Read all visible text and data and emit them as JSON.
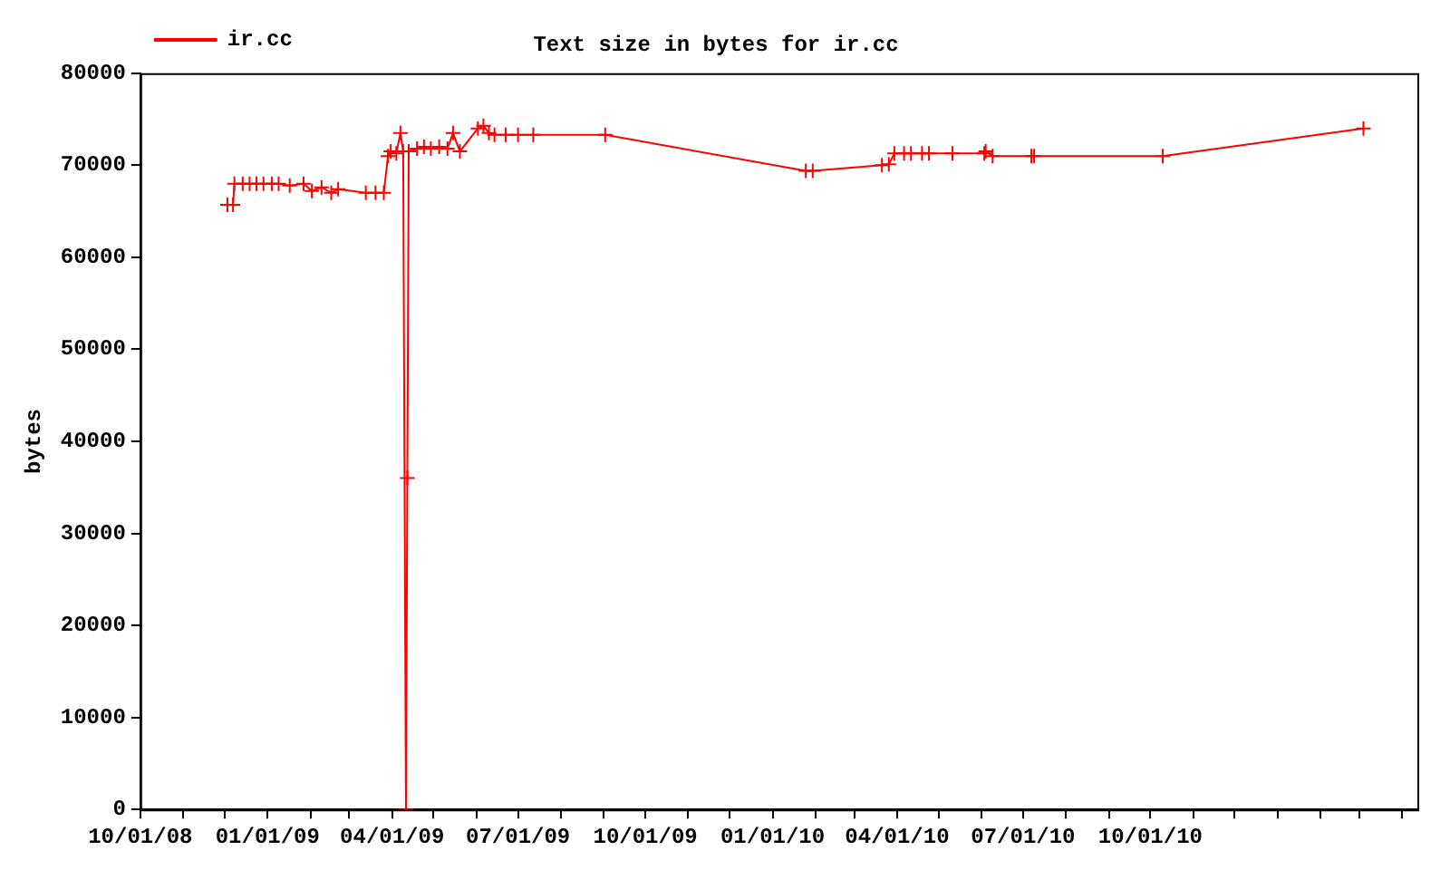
{
  "chart_data": {
    "type": "line",
    "title": "Text size in bytes for ir.cc",
    "ylabel": "bytes",
    "x": [
      "2008-12-03",
      "2008-12-07",
      "2008-12-08",
      "2008-12-14",
      "2008-12-19",
      "2008-12-24",
      "2008-12-29",
      "2009-01-04",
      "2009-01-09",
      "2009-01-17",
      "2009-01-27",
      "2009-02-02",
      "2009-02-09",
      "2009-02-16",
      "2009-02-21",
      "2009-03-13",
      "2009-03-20",
      "2009-03-26",
      "2009-03-29",
      "2009-03-31",
      "2009-04-04",
      "2009-04-07",
      "2009-04-09",
      "2009-04-11",
      "2009-04-12",
      "2009-04-13",
      "2009-04-19",
      "2009-04-24",
      "2009-04-29",
      "2009-05-05",
      "2009-05-11",
      "2009-05-15",
      "2009-05-20",
      "2009-06-02",
      "2009-06-06",
      "2009-06-10",
      "2009-06-14",
      "2009-06-22",
      "2009-07-01",
      "2009-07-12",
      "2009-09-02",
      "2010-01-25",
      "2010-01-30",
      "2010-03-21",
      "2010-03-26",
      "2010-03-30",
      "2010-04-06",
      "2010-04-11",
      "2010-04-19",
      "2010-04-24",
      "2010-05-11",
      "2010-06-03",
      "2010-06-04",
      "2010-06-09",
      "2010-07-07",
      "2010-07-09",
      "2010-10-10",
      "2011-03-04"
    ],
    "series": [
      {
        "name": "ir.cc",
        "color": "#ff0000",
        "values": [
          65700,
          65700,
          68000,
          68000,
          68000,
          68000,
          68000,
          68000,
          68000,
          67800,
          68000,
          67200,
          67600,
          67000,
          67400,
          67000,
          67000,
          67000,
          71000,
          71500,
          71300,
          73500,
          71500,
          0,
          36000,
          71500,
          71800,
          72000,
          71800,
          72000,
          71800,
          73500,
          71500,
          74000,
          74300,
          73500,
          73300,
          73300,
          73300,
          73300,
          73300,
          69400,
          69400,
          70000,
          70100,
          71300,
          71300,
          71300,
          71300,
          71300,
          71300,
          71300,
          71500,
          71000,
          71000,
          71000,
          71000,
          74000
        ]
      }
    ],
    "xlim": [
      "2008-10-01",
      "2011-04-12"
    ],
    "xticks": [
      {
        "value": "2008-10-01",
        "label": "10/01/08"
      },
      {
        "value": "2008-11-01",
        "label": null
      },
      {
        "value": "2008-12-01",
        "label": null
      },
      {
        "value": "2009-01-01",
        "label": "01/01/09"
      },
      {
        "value": "2009-02-01",
        "label": null
      },
      {
        "value": "2009-03-01",
        "label": null
      },
      {
        "value": "2009-04-01",
        "label": "04/01/09"
      },
      {
        "value": "2009-05-01",
        "label": null
      },
      {
        "value": "2009-06-01",
        "label": null
      },
      {
        "value": "2009-07-01",
        "label": "07/01/09"
      },
      {
        "value": "2009-08-01",
        "label": null
      },
      {
        "value": "2009-09-01",
        "label": null
      },
      {
        "value": "2009-10-01",
        "label": "10/01/09"
      },
      {
        "value": "2009-11-01",
        "label": null
      },
      {
        "value": "2009-12-01",
        "label": null
      },
      {
        "value": "2010-01-01",
        "label": "01/01/10"
      },
      {
        "value": "2010-02-01",
        "label": null
      },
      {
        "value": "2010-03-01",
        "label": null
      },
      {
        "value": "2010-04-01",
        "label": "04/01/10"
      },
      {
        "value": "2010-05-01",
        "label": null
      },
      {
        "value": "2010-06-01",
        "label": null
      },
      {
        "value": "2010-07-01",
        "label": "07/01/10"
      },
      {
        "value": "2010-08-01",
        "label": null
      },
      {
        "value": "2010-09-01",
        "label": null
      },
      {
        "value": "2010-10-01",
        "label": "10/01/10"
      },
      {
        "value": "2010-11-01",
        "label": null
      },
      {
        "value": "2010-12-01",
        "label": null
      },
      {
        "value": "2011-01-01",
        "label": null
      },
      {
        "value": "2011-02-01",
        "label": null
      },
      {
        "value": "2011-03-01",
        "label": null
      },
      {
        "value": "2011-04-01",
        "label": null
      }
    ],
    "ylim": [
      0,
      80000
    ],
    "yticks": [
      0,
      10000,
      20000,
      30000,
      40000,
      50000,
      60000,
      70000,
      80000
    ],
    "grid": false,
    "legend": "top left",
    "marker": "cross",
    "line_style": "solid"
  }
}
